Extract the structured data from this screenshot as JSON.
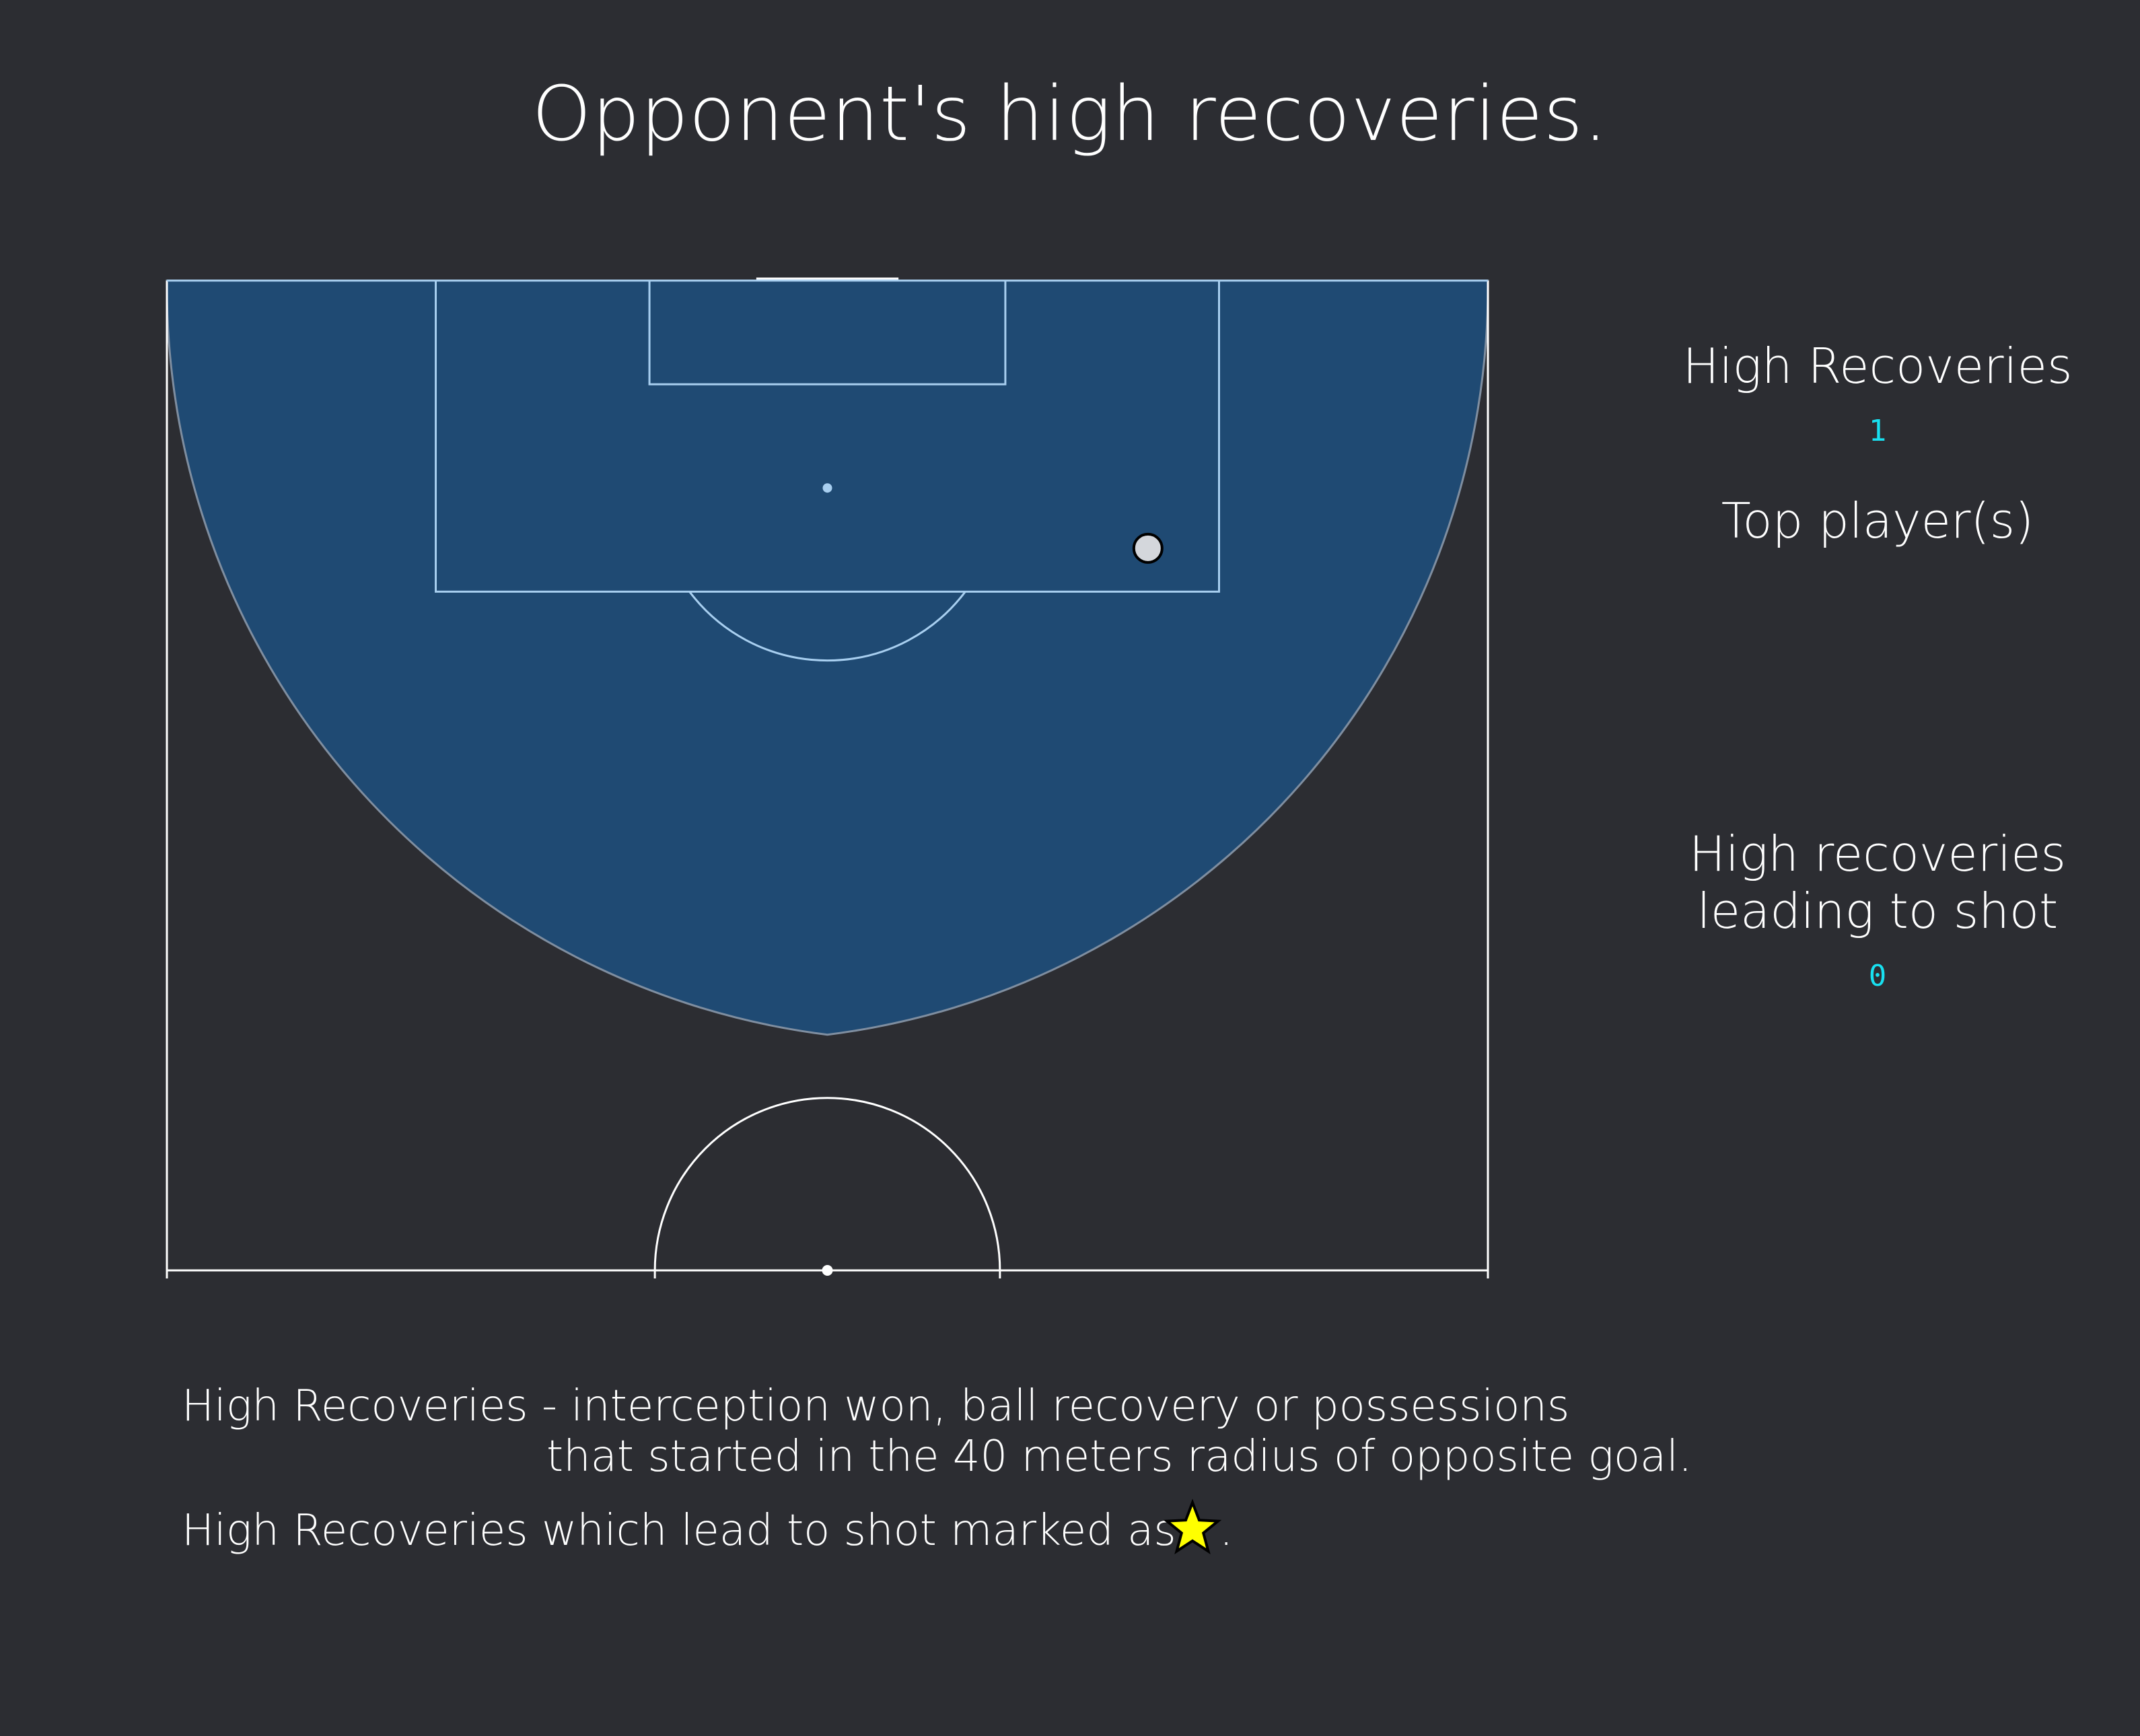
{
  "title": "Opponent's high recoveries.",
  "stats": {
    "high_recoveries_label": "High Recoveries",
    "high_recoveries_value": "1",
    "top_players_label": "Top player(s)",
    "leading_to_shot_line1": "High recoveries",
    "leading_to_shot_line2": "leading to shot",
    "leading_to_shot_value": "0"
  },
  "notes": {
    "definition_line1": "High Recoveries - interception won, ball recovery or possessions",
    "definition_line2": "that started in the 40 meters radius of opposite goal.",
    "star_line": "High Recoveries which lead to shot marked as",
    "star_line_end": "."
  },
  "colors": {
    "background": "#2c2d32",
    "zone_fill": "#1f4a73",
    "zone_edge": "#7f8ea0",
    "pitch_lines": "#ffffff",
    "inner_lines": "#a8cff0",
    "marker_fill": "#d4d7dc",
    "value_text": "#18e0f0",
    "star": "#ffff00"
  },
  "chart_data": {
    "type": "scatter",
    "title": "Opponent's high recoveries.",
    "pitch": {
      "length_m": 105,
      "width_m": 68,
      "view": "opponent half"
    },
    "zone": {
      "shape": "semicircle",
      "radius_m": 40,
      "centered_on": "goal"
    },
    "points": [
      {
        "x": 90.8,
        "y": 50.5,
        "label": "High Recovery",
        "led_to_shot": false
      }
    ],
    "shots_from_recoveries": 0
  }
}
